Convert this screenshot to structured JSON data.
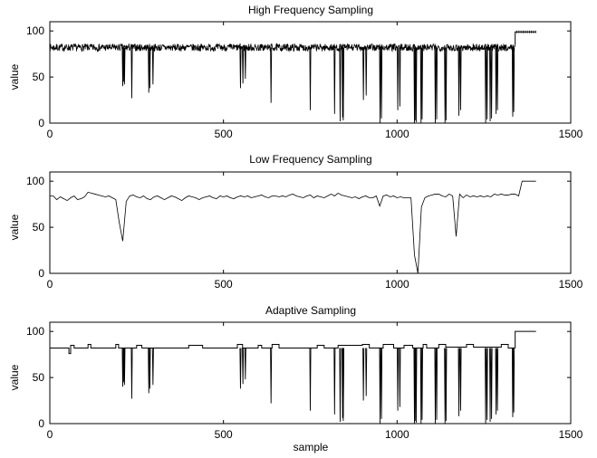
{
  "figure": {
    "xlabel": "sample",
    "line_color": "#000000"
  },
  "chart_data": [
    {
      "type": "line",
      "title": "High Frequency Sampling",
      "xlabel": "",
      "ylabel": "value",
      "xlim": [
        0,
        1500
      ],
      "ylim": [
        0,
        110
      ],
      "xticks": [
        0,
        500,
        1000,
        1500
      ],
      "yticks": [
        0,
        50,
        100
      ],
      "grid": false,
      "series": [
        {
          "baseline": 82,
          "noise": 4,
          "step": 1,
          "x_end": 1340,
          "final_x": [
            1340,
            1400
          ],
          "final_value": 99,
          "final_markers": true,
          "spikes": [
            [
              210,
              40
            ],
            [
              213,
              45
            ],
            [
              215,
              42
            ],
            [
              236,
              27
            ],
            [
              285,
              33
            ],
            [
              288,
              38
            ],
            [
              297,
              42
            ],
            [
              549,
              38
            ],
            [
              556,
              43
            ],
            [
              563,
              48
            ],
            [
              637,
              22
            ],
            [
              750,
              14
            ],
            [
              820,
              10
            ],
            [
              836,
              2
            ],
            [
              843,
              6
            ],
            [
              845,
              8
            ],
            [
              845,
              3
            ],
            [
              903,
              25
            ],
            [
              911,
              30
            ],
            [
              951,
              0
            ],
            [
              955,
              5
            ],
            [
              1002,
              14
            ],
            [
              1008,
              18
            ],
            [
              1050,
              0
            ],
            [
              1052,
              3
            ],
            [
              1055,
              1
            ],
            [
              1069,
              0
            ],
            [
              1072,
              4
            ],
            [
              1110,
              0
            ],
            [
              1114,
              4
            ],
            [
              1138,
              0
            ],
            [
              1141,
              3
            ],
            [
              1178,
              8
            ],
            [
              1183,
              14
            ],
            [
              1255,
              0
            ],
            [
              1259,
              4
            ],
            [
              1268,
              2
            ],
            [
              1272,
              5
            ],
            [
              1285,
              10
            ],
            [
              1289,
              14
            ],
            [
              1333,
              7
            ],
            [
              1336,
              12
            ]
          ]
        }
      ]
    },
    {
      "type": "line",
      "title": "Low Frequency Sampling",
      "xlabel": "",
      "ylabel": "value",
      "xlim": [
        0,
        1500
      ],
      "ylim": [
        0,
        110
      ],
      "xticks": [
        0,
        500,
        1000,
        1500
      ],
      "yticks": [
        0,
        50,
        100
      ],
      "grid": false,
      "series": [
        {
          "x": [
            0,
            10,
            20,
            30,
            40,
            50,
            60,
            70,
            80,
            90,
            100,
            110,
            120,
            130,
            140,
            150,
            160,
            170,
            180,
            190,
            200,
            210,
            220,
            230,
            240,
            250,
            260,
            270,
            280,
            290,
            300,
            310,
            320,
            330,
            340,
            350,
            360,
            370,
            380,
            390,
            400,
            410,
            420,
            430,
            440,
            450,
            460,
            470,
            480,
            490,
            500,
            510,
            520,
            530,
            540,
            550,
            560,
            570,
            580,
            590,
            600,
            610,
            620,
            630,
            640,
            650,
            660,
            670,
            680,
            690,
            700,
            710,
            720,
            730,
            740,
            750,
            760,
            770,
            780,
            790,
            800,
            810,
            820,
            830,
            840,
            850,
            860,
            870,
            880,
            890,
            900,
            910,
            920,
            930,
            940,
            950,
            960,
            970,
            980,
            990,
            1000,
            1010,
            1020,
            1030,
            1040,
            1050,
            1060,
            1070,
            1080,
            1090,
            1100,
            1110,
            1120,
            1130,
            1140,
            1150,
            1160,
            1170,
            1180,
            1190,
            1200,
            1210,
            1220,
            1230,
            1240,
            1250,
            1260,
            1270,
            1280,
            1290,
            1300,
            1310,
            1320,
            1330,
            1340,
            1350,
            1360,
            1370,
            1380,
            1390,
            1400
          ],
          "values": [
            84,
            84,
            80,
            83,
            81,
            79,
            82,
            84,
            80,
            81,
            83,
            88,
            87,
            86,
            85,
            84,
            83,
            84,
            82,
            80,
            55,
            35,
            78,
            84,
            85,
            83,
            82,
            84,
            81,
            80,
            83,
            84,
            82,
            80,
            82,
            84,
            83,
            81,
            79,
            82,
            84,
            83,
            82,
            80,
            82,
            83,
            84,
            82,
            81,
            84,
            83,
            84,
            82,
            81,
            83,
            84,
            83,
            84,
            82,
            83,
            84,
            85,
            83,
            82,
            84,
            84,
            83,
            84,
            83,
            85,
            86,
            84,
            83,
            82,
            84,
            85,
            82,
            84,
            83,
            82,
            84,
            86,
            84,
            87,
            85,
            84,
            83,
            82,
            83,
            81,
            83,
            84,
            82,
            82,
            84,
            73,
            84,
            85,
            83,
            84,
            82,
            83,
            82,
            82,
            82,
            20,
            0,
            72,
            82,
            84,
            85,
            86,
            86,
            84,
            83,
            86,
            84,
            40,
            86,
            82,
            85,
            83,
            84,
            83,
            84,
            83,
            84,
            83,
            86,
            85,
            86,
            85,
            85,
            86,
            86,
            84,
            100,
            100,
            100,
            100,
            100
          ]
        }
      ]
    },
    {
      "type": "line",
      "title": "Adaptive Sampling",
      "xlabel": "sample",
      "ylabel": "value",
      "xlim": [
        0,
        1500
      ],
      "ylim": [
        0,
        110
      ],
      "xticks": [
        0,
        500,
        1000,
        1500
      ],
      "yticks": [
        0,
        50,
        100
      ],
      "grid": false,
      "series": [
        {
          "baseline": 82,
          "step_levels": [
            [
              0,
              82
            ],
            [
              55,
              76
            ],
            [
              60,
              85
            ],
            [
              70,
              82
            ],
            [
              110,
              86
            ],
            [
              118,
              82
            ],
            [
              190,
              86
            ],
            [
              198,
              82
            ],
            [
              250,
              85
            ],
            [
              265,
              82
            ],
            [
              400,
              85
            ],
            [
              440,
              82
            ],
            [
              540,
              86
            ],
            [
              555,
              82
            ],
            [
              600,
              85
            ],
            [
              610,
              82
            ],
            [
              640,
              86
            ],
            [
              660,
              82
            ],
            [
              770,
              85
            ],
            [
              790,
              82
            ],
            [
              830,
              85
            ],
            [
              900,
              86
            ],
            [
              920,
              82
            ],
            [
              960,
              86
            ],
            [
              990,
              82
            ],
            [
              1020,
              85
            ],
            [
              1045,
              82
            ],
            [
              1075,
              86
            ],
            [
              1085,
              82
            ],
            [
              1120,
              86
            ],
            [
              1140,
              83
            ],
            [
              1200,
              86
            ],
            [
              1220,
              83
            ],
            [
              1300,
              86
            ],
            [
              1320,
              82
            ],
            [
              1340,
              82
            ]
          ],
          "final_x": [
            1340,
            1400
          ],
          "final_value": 100,
          "spikes": [
            [
              210,
              40
            ],
            [
              213,
              45
            ],
            [
              215,
              42
            ],
            [
              236,
              27
            ],
            [
              285,
              33
            ],
            [
              288,
              38
            ],
            [
              297,
              42
            ],
            [
              549,
              38
            ],
            [
              556,
              43
            ],
            [
              563,
              48
            ],
            [
              637,
              22
            ],
            [
              750,
              14
            ],
            [
              820,
              10
            ],
            [
              836,
              2
            ],
            [
              843,
              6
            ],
            [
              845,
              8
            ],
            [
              845,
              3
            ],
            [
              903,
              25
            ],
            [
              911,
              30
            ],
            [
              951,
              0
            ],
            [
              955,
              5
            ],
            [
              1002,
              14
            ],
            [
              1008,
              18
            ],
            [
              1050,
              0
            ],
            [
              1052,
              3
            ],
            [
              1055,
              1
            ],
            [
              1069,
              0
            ],
            [
              1072,
              4
            ],
            [
              1110,
              0
            ],
            [
              1114,
              4
            ],
            [
              1138,
              0
            ],
            [
              1141,
              3
            ],
            [
              1178,
              8
            ],
            [
              1183,
              14
            ],
            [
              1255,
              0
            ],
            [
              1259,
              4
            ],
            [
              1268,
              2
            ],
            [
              1272,
              5
            ],
            [
              1285,
              10
            ],
            [
              1289,
              14
            ],
            [
              1333,
              7
            ],
            [
              1336,
              12
            ]
          ]
        }
      ]
    }
  ]
}
